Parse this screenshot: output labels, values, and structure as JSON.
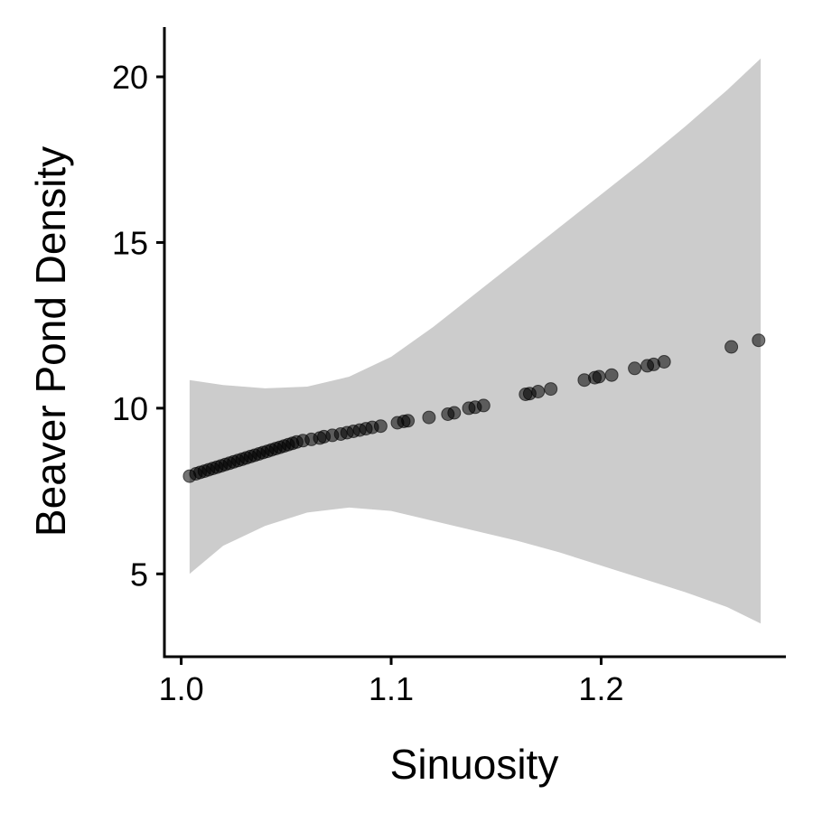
{
  "chart_data": {
    "type": "scatter",
    "title": "",
    "xlabel": "Sinuosity",
    "ylabel": "Beaver Pond Density",
    "xlim": [
      0.992,
      1.288
    ],
    "ylim": [
      2.5,
      21.5
    ],
    "x_ticks": [
      {
        "value": 1.0,
        "label": "1.0"
      },
      {
        "value": 1.1,
        "label": "1.1"
      },
      {
        "value": 1.2,
        "label": "1.2"
      }
    ],
    "y_ticks": [
      {
        "value": 5,
        "label": "5"
      },
      {
        "value": 10,
        "label": "10"
      },
      {
        "value": 15,
        "label": "15"
      },
      {
        "value": 20,
        "label": "20"
      }
    ],
    "grid": false,
    "legend": "none",
    "colors": {
      "points": "#000000",
      "ribbon": "#cccccc",
      "axis": "#000000"
    },
    "ribbon": {
      "x": [
        1.004,
        1.02,
        1.04,
        1.06,
        1.08,
        1.1,
        1.12,
        1.14,
        1.16,
        1.18,
        1.2,
        1.22,
        1.24,
        1.26,
        1.276
      ],
      "upper": [
        10.85,
        10.7,
        10.6,
        10.65,
        10.95,
        11.55,
        12.45,
        13.45,
        14.45,
        15.45,
        16.45,
        17.45,
        18.5,
        19.6,
        20.55
      ],
      "lower": [
        5.0,
        5.85,
        6.45,
        6.85,
        7.0,
        6.9,
        6.6,
        6.3,
        6.0,
        5.65,
        5.25,
        4.85,
        4.45,
        4.0,
        3.5
      ]
    },
    "series": [
      {
        "x": [
          1.004,
          1.007,
          1.009,
          1.011,
          1.013,
          1.015,
          1.017,
          1.019,
          1.021,
          1.023,
          1.025,
          1.027,
          1.029,
          1.031,
          1.033,
          1.035,
          1.037,
          1.039,
          1.041,
          1.043,
          1.045,
          1.047,
          1.049,
          1.051,
          1.053,
          1.055,
          1.058,
          1.062,
          1.066,
          1.068,
          1.072,
          1.076,
          1.079,
          1.082,
          1.085,
          1.088,
          1.091,
          1.095,
          1.103,
          1.106,
          1.108,
          1.118,
          1.127,
          1.13,
          1.137,
          1.14,
          1.144,
          1.164,
          1.166,
          1.17,
          1.176,
          1.192,
          1.197,
          1.199,
          1.205,
          1.216,
          1.222,
          1.225,
          1.23,
          1.262,
          1.275
        ],
        "y": [
          7.95,
          8.02,
          8.06,
          8.1,
          8.14,
          8.18,
          8.22,
          8.26,
          8.3,
          8.34,
          8.38,
          8.42,
          8.46,
          8.5,
          8.54,
          8.58,
          8.62,
          8.66,
          8.7,
          8.74,
          8.78,
          8.82,
          8.86,
          8.9,
          8.94,
          8.98,
          9.02,
          9.06,
          9.1,
          9.14,
          9.18,
          9.22,
          9.26,
          9.3,
          9.34,
          9.38,
          9.42,
          9.46,
          9.56,
          9.6,
          9.62,
          9.72,
          9.82,
          9.86,
          10.0,
          10.03,
          10.08,
          10.42,
          10.44,
          10.5,
          10.58,
          10.85,
          10.92,
          10.95,
          11.0,
          11.2,
          11.28,
          11.32,
          11.4,
          11.85,
          12.05
        ]
      }
    ]
  }
}
